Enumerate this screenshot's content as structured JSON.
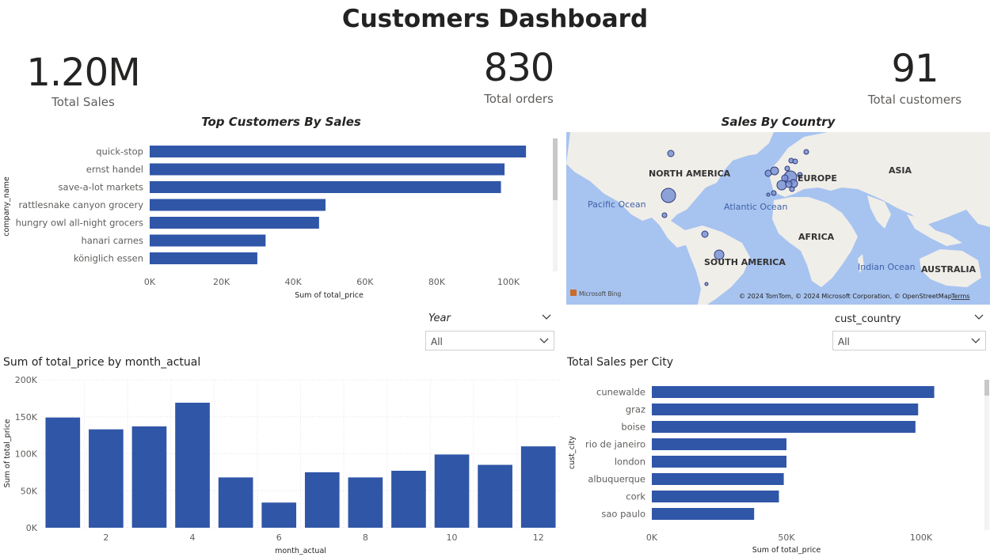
{
  "title": "Customers Dashboard",
  "kpis": [
    {
      "value": "1.20M",
      "label": "Total Sales"
    },
    {
      "value": "830",
      "label": "Total orders"
    },
    {
      "value": "91",
      "label": "Total customers"
    }
  ],
  "colors": {
    "bar": "#3056a8",
    "map_water": "#a7c3f0",
    "map_land": "#f0eee9",
    "bubble": "#7b93d6"
  },
  "slicers": {
    "year": {
      "label": "Year",
      "value": "All"
    },
    "country": {
      "label": "cust_country",
      "value": "All"
    }
  },
  "map": {
    "title": "Sales By Country",
    "labels": {
      "north_america": "NORTH AMERICA",
      "south_america": "SOUTH AMERICA",
      "europe": "EUROPE",
      "asia": "ASIA",
      "africa": "AFRICA",
      "australia": "AUSTRALIA",
      "pacific": "Pacific Ocean",
      "atlantic": "Atlantic Ocean",
      "indian": "Indian Ocean"
    },
    "logo": "Microsoft Bing",
    "copyright": "© 2024 TomTom, © 2024 Microsoft Corporation, © OpenStreetMap",
    "terms": "Terms"
  },
  "chart_data": [
    {
      "type": "bar",
      "orientation": "horizontal",
      "title": "Top Customers By Sales",
      "xlabel": "Sum of total_price",
      "ylabel": "company_name",
      "categories": [
        "quick-stop",
        "ernst handel",
        "save-a-lot markets",
        "rattlesnake canyon grocery",
        "hungry owl all-night grocers",
        "hanari carnes",
        "königlich essen"
      ],
      "values": [
        104875,
        98900,
        97900,
        49000,
        47200,
        32300,
        30000
      ],
      "xlim": [
        0,
        115000
      ],
      "ticks": [
        {
          "v": 0,
          "label": "0K"
        },
        {
          "v": 20000,
          "label": "20K"
        },
        {
          "v": 40000,
          "label": "40K"
        },
        {
          "v": 60000,
          "label": "60K"
        },
        {
          "v": 80000,
          "label": "80K"
        },
        {
          "v": 100000,
          "label": "100K"
        }
      ],
      "grid": false
    },
    {
      "type": "bar",
      "orientation": "vertical",
      "title": "Sum of total_price by month_actual",
      "xlabel": "month_actual",
      "ylabel": "Sum of total_price",
      "categories": [
        1,
        2,
        3,
        4,
        5,
        6,
        7,
        8,
        9,
        10,
        11,
        12
      ],
      "tick_labels": [
        "",
        "2",
        "",
        "4",
        "",
        "6",
        "",
        "8",
        "",
        "10",
        "",
        "12"
      ],
      "values": [
        149000,
        133000,
        137000,
        169000,
        68000,
        34000,
        75000,
        68000,
        77000,
        99000,
        85000,
        110000
      ],
      "ylim": [
        0,
        200000
      ],
      "yticks": [
        {
          "v": 0,
          "label": "0K"
        },
        {
          "v": 50000,
          "label": "50K"
        },
        {
          "v": 100000,
          "label": "100K"
        },
        {
          "v": 150000,
          "label": "150K"
        },
        {
          "v": 200000,
          "label": "200K"
        }
      ],
      "grid": true
    },
    {
      "type": "bar",
      "orientation": "horizontal",
      "title": "Total Sales per City",
      "xlabel": "Sum of total_price",
      "ylabel": "cust_city",
      "categories": [
        "cunewalde",
        "graz",
        "boise",
        "rio de janeiro",
        "london",
        "albuquerque",
        "cork",
        "sao paulo"
      ],
      "values": [
        104875,
        98900,
        97900,
        50000,
        50000,
        49000,
        47200,
        38000
      ],
      "xlim": [
        0,
        120000
      ],
      "ticks": [
        {
          "v": 0,
          "label": "0K"
        },
        {
          "v": 50000,
          "label": "50K"
        },
        {
          "v": 100000,
          "label": "100K"
        }
      ],
      "grid": false
    }
  ]
}
